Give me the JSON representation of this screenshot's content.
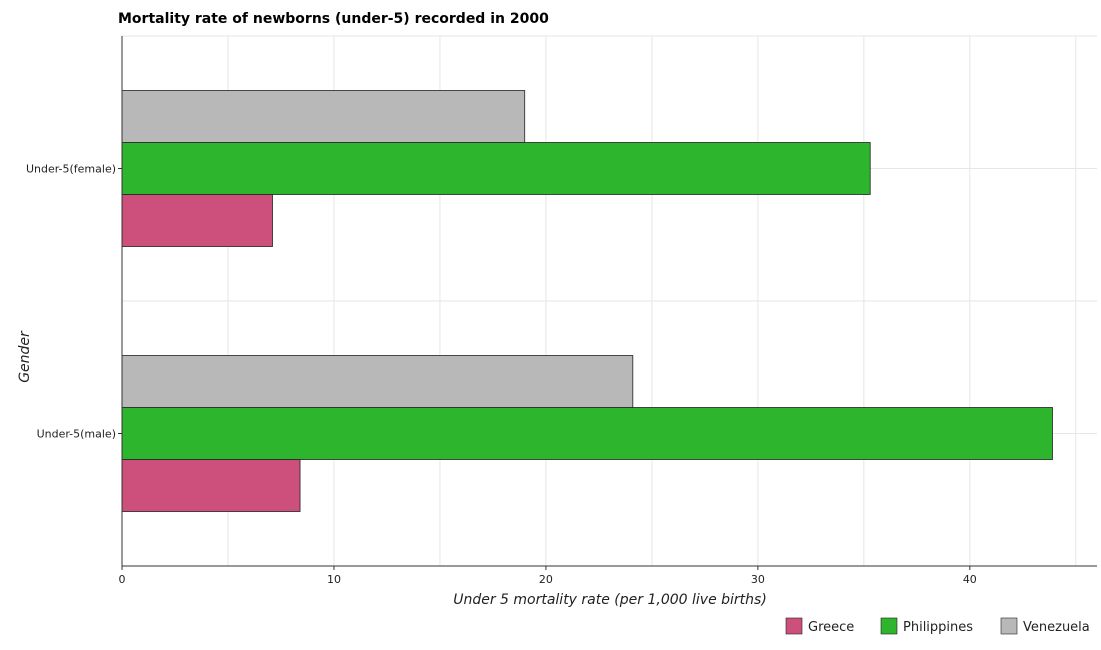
{
  "chart_data": {
    "type": "bar",
    "orientation": "horizontal",
    "title": "Mortality rate of newborns (under-5) recorded in 2000",
    "xlabel": "Under 5 mortality rate (per 1,000 live births)",
    "ylabel": "Gender",
    "categories": [
      "Under-5(female)",
      "Under-5(male)"
    ],
    "series": [
      {
        "name": "Greece",
        "color": "#cc4f7c",
        "values": [
          7.1,
          8.4
        ]
      },
      {
        "name": "Philippines",
        "color": "#2db52d",
        "values": [
          35.3,
          43.9
        ]
      },
      {
        "name": "Venezuela",
        "color": "#b8b8b8",
        "values": [
          19.0,
          24.1
        ]
      }
    ],
    "xlim": [
      0,
      46
    ],
    "xticks": [
      0,
      10,
      20,
      30,
      40
    ],
    "grid": true,
    "legend_position": "bottom-right"
  }
}
